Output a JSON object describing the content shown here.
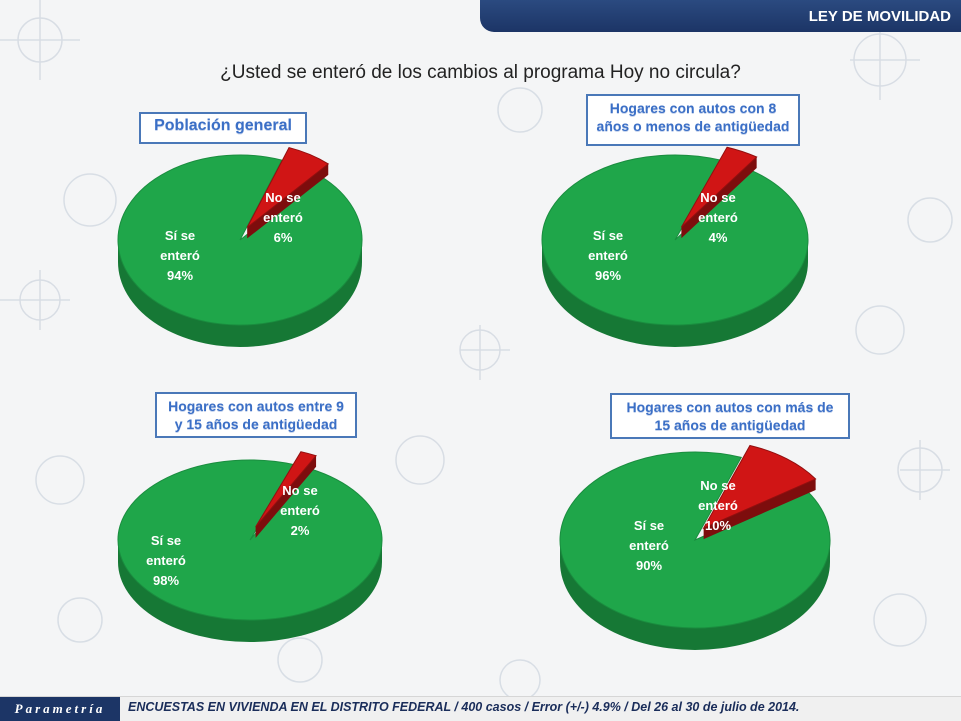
{
  "header": {
    "section_title": "LEY DE MOVILIDAD"
  },
  "question": "¿Usted se enteró de los cambios al programa Hoy no circula?",
  "footer": {
    "brand": "Parametría",
    "note": "ENCUESTAS EN VIVIENDA EN EL DISTRITO FEDERAL / 400 casos / Error (+/-) 4.9% / Del 26 al 30 de julio de 2014."
  },
  "colors": {
    "yes": "#1fa64a",
    "no": "#d01515",
    "title_border": "#4a78b8",
    "title_text": "#3b6fc6",
    "header_bg": "#1c3566"
  },
  "chart_data": [
    {
      "type": "pie",
      "title": "Población general",
      "slices": [
        {
          "label_lines": [
            "Sí se",
            "enteró",
            "94%"
          ],
          "value": 94,
          "color": "#1fa64a"
        },
        {
          "label_lines": [
            "No se",
            "enteró",
            "6%"
          ],
          "value": 6,
          "color": "#d01515"
        }
      ]
    },
    {
      "type": "pie",
      "title": "Hogares con autos con 8 años o menos de antigüedad",
      "slices": [
        {
          "label_lines": [
            "Sí se",
            "enteró",
            "96%"
          ],
          "value": 96,
          "color": "#1fa64a"
        },
        {
          "label_lines": [
            "No se",
            "enteró",
            "4%"
          ],
          "value": 4,
          "color": "#d01515"
        }
      ]
    },
    {
      "type": "pie",
      "title": "Hogares con autos entre 9 y 15 años de antigüedad",
      "slices": [
        {
          "label_lines": [
            "Sí se",
            "enteró",
            "98%"
          ],
          "value": 98,
          "color": "#1fa64a"
        },
        {
          "label_lines": [
            "No se",
            "enteró",
            "2%"
          ],
          "value": 2,
          "color": "#d01515"
        }
      ]
    },
    {
      "type": "pie",
      "title": "Hogares con autos con más de 15 años de antigüedad",
      "slices": [
        {
          "label_lines": [
            "Sí se",
            "enteró",
            "90%"
          ],
          "value": 90,
          "color": "#1fa64a"
        },
        {
          "label_lines": [
            "No se",
            "enteró",
            "10%"
          ],
          "value": 10,
          "color": "#d01515"
        }
      ]
    }
  ]
}
